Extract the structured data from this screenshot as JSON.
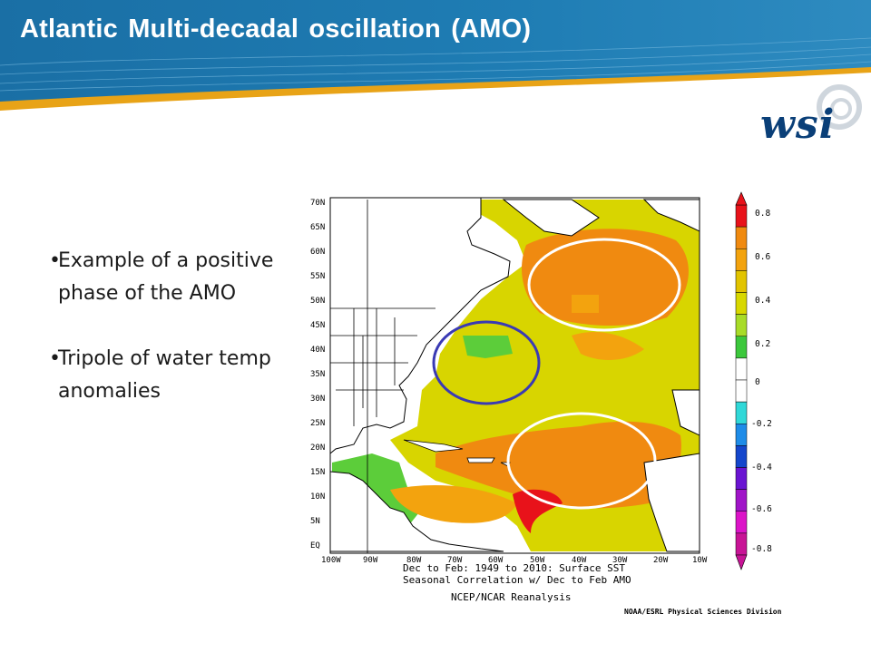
{
  "slide": {
    "title": "Atlantic Multi-decadal oscillation (AMO)",
    "logo_text": "wsi",
    "bullets": [
      "Example of a positive phase of the AMO",
      "Tripole of water temp anomalies"
    ]
  },
  "map": {
    "lat_labels": [
      "70N",
      "65N",
      "60N",
      "55N",
      "50N",
      "45N",
      "40N",
      "35N",
      "30N",
      "25N",
      "20N",
      "15N",
      "10N",
      "5N",
      "EQ"
    ],
    "lon_labels": [
      "100W",
      "90W",
      "80W",
      "70W",
      "60W",
      "50W",
      "40W",
      "30W",
      "20W",
      "10W"
    ],
    "caption_line1": "Dec to Feb: 1949 to 2010: Surface SST",
    "caption_line2": "Seasonal Correlation w/ Dec to Feb AMO",
    "caption_line3": "NCEP/NCAR Reanalysis",
    "credit": "NOAA/ESRL Physical Sciences Division"
  },
  "colorbar": {
    "labels": [
      "0.8",
      "0.6",
      "0.4",
      "0.2",
      "0",
      "-0.2",
      "-0.4",
      "-0.6",
      "-0.8"
    ],
    "colors": [
      "#e8121a",
      "#f08a10",
      "#f3a30e",
      "#e2c400",
      "#d8d800",
      "#a8dc28",
      "#3cc83c",
      "#ffffff",
      "#ffffff",
      "#30d8d8",
      "#1e8ce8",
      "#1446cc",
      "#6a14d2",
      "#a014c8",
      "#dc14c8",
      "#c81496"
    ]
  },
  "annotations": {
    "ellipse_colors": [
      "#ffffff",
      "#ffffff",
      "#3a3ab4"
    ]
  }
}
